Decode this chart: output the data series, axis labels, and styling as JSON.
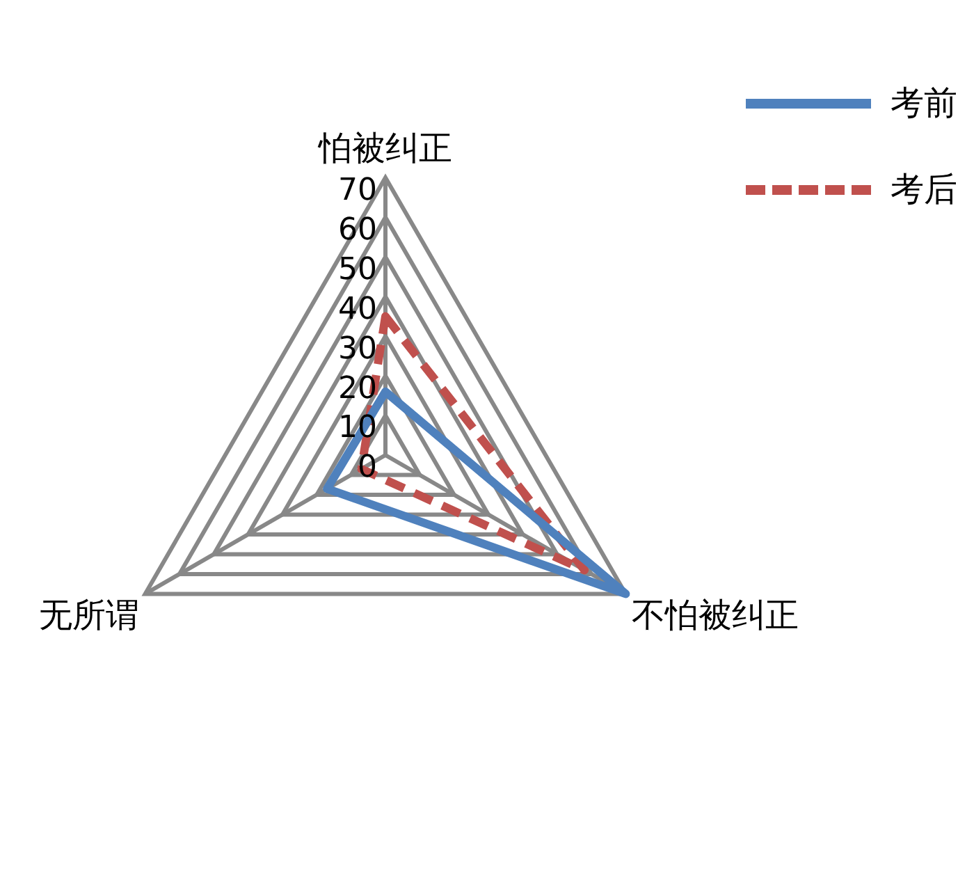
{
  "chart_data": {
    "type": "radar",
    "categories": [
      "怕被纠正",
      "不怕被纠正",
      "无所谓"
    ],
    "series": [
      {
        "name": "考前",
        "color": "#4f81bd",
        "values": [
          16,
          70,
          17
        ],
        "line_style": "solid"
      },
      {
        "name": "考后",
        "color": "#c0504d",
        "values": [
          35,
          58,
          7
        ],
        "line_style": "dashed"
      }
    ],
    "ylim": [
      0,
      70
    ],
    "yticks": [
      0,
      10,
      20,
      30,
      40,
      50,
      60,
      70
    ],
    "grid": true,
    "legend": "top right",
    "marker": "none"
  }
}
